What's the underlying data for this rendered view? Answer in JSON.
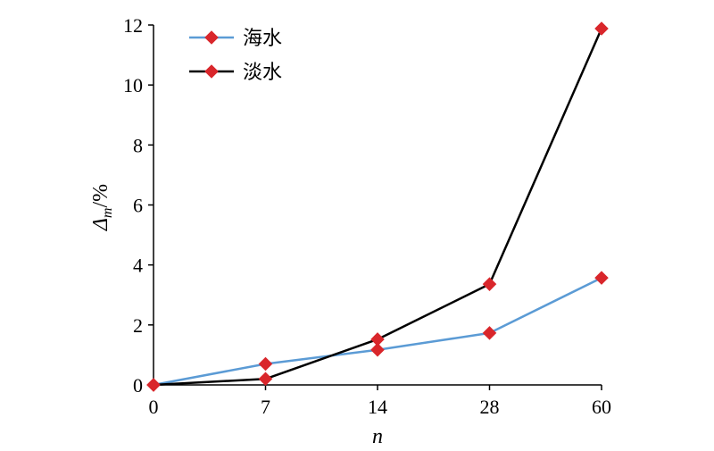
{
  "chart_data": {
    "type": "line",
    "categories": [
      "0",
      "7",
      "14",
      "28",
      "60"
    ],
    "xlabel": "n",
    "ylabel_main": "Δ",
    "ylabel_sub": "m",
    "ylabel_unit": "/%",
    "ylim": [
      0,
      12
    ],
    "yticks": [
      0,
      2,
      4,
      6,
      8,
      10,
      12
    ],
    "grid": false,
    "legend": "top-left",
    "marker_color": "#d9262b",
    "series": [
      {
        "name": "海水",
        "color": "#5b9bd5",
        "values": [
          0,
          0.7,
          1.17,
          1.73,
          3.57
        ]
      },
      {
        "name": "淡水",
        "color": "#000000",
        "values": [
          0,
          0.2,
          1.52,
          3.36,
          11.88
        ]
      }
    ]
  }
}
